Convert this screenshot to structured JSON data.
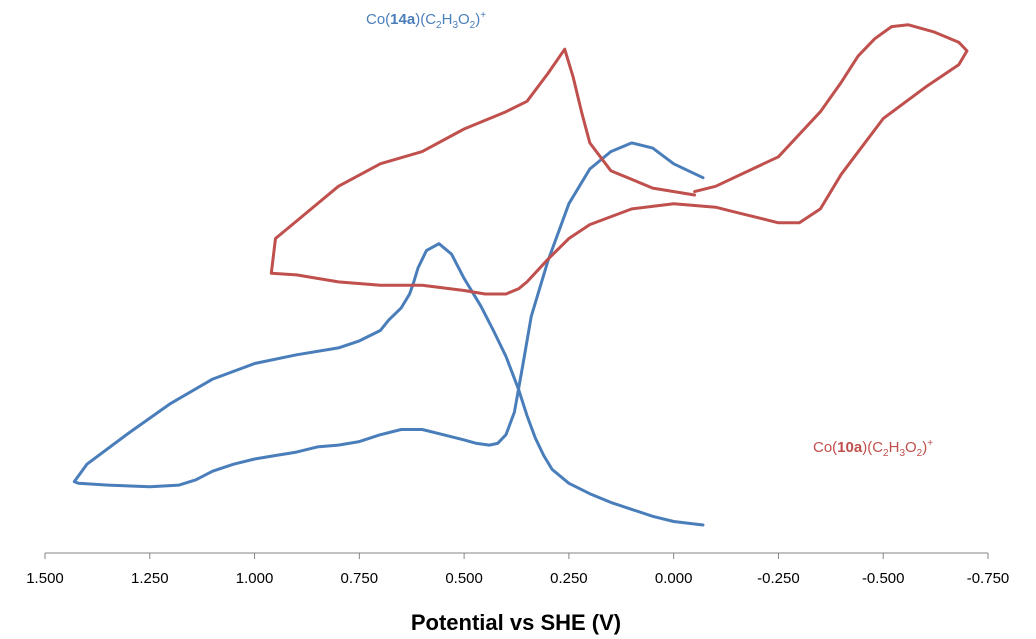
{
  "chart_data": {
    "type": "line",
    "xlabel": "Potential vs SHE (V)",
    "xlim": [
      1.5,
      -0.75
    ],
    "x_reversed": true,
    "x_ticks": [
      "1.500",
      "1.250",
      "1.000",
      "0.750",
      "0.500",
      "0.250",
      "0.000",
      "-0.250",
      "-0.500",
      "-0.750"
    ],
    "y_axis_visible": false,
    "grid": false,
    "legend": "none",
    "series": [
      {
        "name": "Co(14a)(C2H3O2)+",
        "label_parts": {
          "a": "Co(",
          "b": "14a",
          "c": ")(C",
          "d": "2",
          "e": "H",
          "f": "3",
          "g": "O",
          "h": "2",
          "i": ")",
          "j": "+"
        },
        "color": "#4A7EBB",
        "x": [
          -0.07,
          0.0,
          0.05,
          0.1,
          0.15,
          0.2,
          0.25,
          0.29,
          0.31,
          0.33,
          0.35,
          0.37,
          0.4,
          0.43,
          0.46,
          0.5,
          0.53,
          0.56,
          0.59,
          0.61,
          0.62,
          0.63,
          0.65,
          0.68,
          0.7,
          0.75,
          0.8,
          0.9,
          1.0,
          1.1,
          1.2,
          1.3,
          1.4,
          1.43,
          1.42,
          1.35,
          1.25,
          1.18,
          1.14,
          1.1,
          1.05,
          1.0,
          0.95,
          0.9,
          0.85,
          0.8,
          0.75,
          0.7,
          0.65,
          0.6,
          0.55,
          0.5,
          0.47,
          0.44,
          0.42,
          0.4,
          0.38,
          0.36,
          0.34,
          0.3,
          0.25,
          0.2,
          0.15,
          0.1,
          0.05,
          0.0,
          -0.07
        ],
        "y": [
          0.0,
          0.02,
          0.05,
          0.09,
          0.13,
          0.18,
          0.24,
          0.32,
          0.4,
          0.5,
          0.63,
          0.78,
          0.97,
          1.12,
          1.26,
          1.42,
          1.56,
          1.62,
          1.58,
          1.48,
          1.4,
          1.33,
          1.25,
          1.18,
          1.12,
          1.06,
          1.02,
          0.98,
          0.93,
          0.84,
          0.7,
          0.53,
          0.35,
          0.25,
          0.24,
          0.23,
          0.22,
          0.23,
          0.26,
          0.31,
          0.35,
          0.38,
          0.4,
          0.42,
          0.45,
          0.46,
          0.48,
          0.52,
          0.55,
          0.55,
          0.52,
          0.49,
          0.47,
          0.46,
          0.47,
          0.52,
          0.65,
          0.92,
          1.2,
          1.52,
          1.85,
          2.05,
          2.15,
          2.2,
          2.17,
          2.08,
          2.0
        ]
      },
      {
        "name": "Co(10a)(C2H3O2)+",
        "label_parts": {
          "a": "Co(",
          "b": "10a",
          "c": ")(C",
          "d": "2",
          "e": "H",
          "f": "3",
          "g": "O",
          "h": "2",
          "i": ")",
          "j": "+"
        },
        "color": "#C0504D",
        "x": [
          -0.05,
          0.05,
          0.15,
          0.2,
          0.22,
          0.24,
          0.26,
          0.3,
          0.35,
          0.4,
          0.5,
          0.6,
          0.7,
          0.8,
          0.9,
          0.95,
          0.96,
          0.9,
          0.8,
          0.7,
          0.6,
          0.5,
          0.45,
          0.4,
          0.37,
          0.35,
          0.3,
          0.25,
          0.2,
          0.1,
          0.0,
          -0.1,
          -0.15,
          -0.2,
          -0.25,
          -0.3,
          -0.35,
          -0.4,
          -0.5,
          -0.6,
          -0.68,
          -0.7,
          -0.68,
          -0.62,
          -0.56,
          -0.52,
          -0.48,
          -0.44,
          -0.4,
          -0.35,
          -0.25,
          -0.1,
          -0.05
        ],
        "y": [
          1.9,
          1.94,
          2.04,
          2.2,
          2.38,
          2.58,
          2.74,
          2.6,
          2.44,
          2.38,
          2.28,
          2.15,
          2.08,
          1.95,
          1.75,
          1.65,
          1.45,
          1.44,
          1.4,
          1.38,
          1.38,
          1.35,
          1.33,
          1.33,
          1.36,
          1.4,
          1.53,
          1.65,
          1.73,
          1.82,
          1.85,
          1.83,
          1.8,
          1.77,
          1.74,
          1.74,
          1.82,
          2.02,
          2.34,
          2.52,
          2.65,
          2.73,
          2.78,
          2.84,
          2.88,
          2.87,
          2.8,
          2.7,
          2.55,
          2.38,
          2.12,
          1.95,
          1.92
        ]
      }
    ]
  }
}
